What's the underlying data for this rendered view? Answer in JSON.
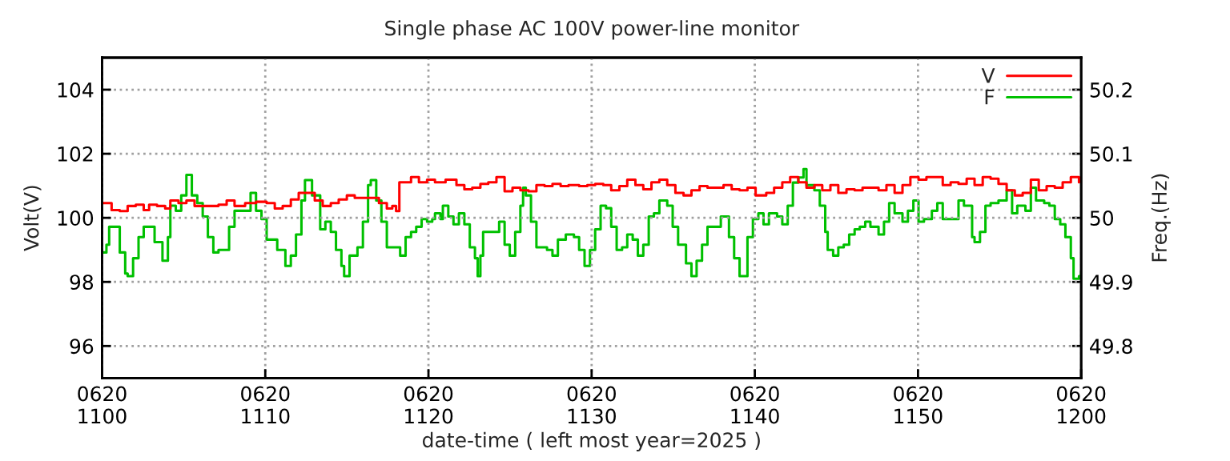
{
  "chart_data": {
    "type": "step",
    "title": "Single phase AC 100V power-line monitor",
    "xlabel": "date-time ( left most year=2025 )",
    "ylabel": "Volt(V)",
    "y2label": "Freq.(Hz)",
    "xlim": [
      "2025-06-20T11:00",
      "2025-06-20T12:00"
    ],
    "xticks": [
      {
        "value": "2025-06-20T11:00",
        "label": "0620\n1100"
      },
      {
        "value": "2025-06-20T11:10",
        "label": "0620\n1110"
      },
      {
        "value": "2025-06-20T11:20",
        "label": "0620\n1120"
      },
      {
        "value": "2025-06-20T11:30",
        "label": "0620\n1130"
      },
      {
        "value": "2025-06-20T11:40",
        "label": "0620\n1140"
      },
      {
        "value": "2025-06-20T11:50",
        "label": "0620\n1150"
      },
      {
        "value": "2025-06-20T12:00",
        "label": "0620\n1200"
      }
    ],
    "ylim": [
      95,
      105
    ],
    "yticks": [
      96,
      98,
      100,
      102,
      104
    ],
    "y2lim": [
      49.75,
      50.25
    ],
    "y2ticks": [
      49.8,
      49.9,
      50,
      50.1,
      50.2
    ],
    "grid": true,
    "legend": "top right",
    "series": [
      {
        "name": "V",
        "color": "#ff0000",
        "x": [
          "2025-06-20T11:00:00",
          "2025-06-20T11:00:16",
          "2025-06-20T11:00:35",
          "2025-06-20T11:01:05",
          "2025-06-20T11:01:34",
          "2025-06-20T11:02:04",
          "2025-06-20T11:02:33",
          "2025-06-20T11:02:53",
          "2025-06-20T11:03:22",
          "2025-06-20T11:03:52",
          "2025-06-20T11:04:11",
          "2025-06-20T11:04:41",
          "2025-06-20T11:05:10",
          "2025-06-20T11:05:40",
          "2025-06-20T11:06:10",
          "2025-06-20T11:06:39",
          "2025-06-20T11:07:08",
          "2025-06-20T11:07:38",
          "2025-06-20T11:08:07",
          "2025-06-20T11:08:46",
          "2025-06-20T11:09:26",
          "2025-06-20T11:10:05",
          "2025-06-20T11:10:35",
          "2025-06-20T11:11:04",
          "2025-06-20T11:11:34",
          "2025-06-20T11:12:03",
          "2025-06-20T11:12:32",
          "2025-06-20T11:13:02",
          "2025-06-20T11:13:31",
          "2025-06-20T11:14:01",
          "2025-06-20T11:14:30",
          "2025-06-20T11:15:00",
          "2025-06-20T11:15:29",
          "2025-06-20T11:15:59",
          "2025-06-20T11:16:28",
          "2025-06-20T11:16:58",
          "2025-06-20T11:17:27",
          "2025-06-20T11:17:47",
          "2025-06-20T11:18:01",
          "2025-06-20T11:18:13",
          "2025-06-20T11:18:36",
          "2025-06-20T11:18:56",
          "2025-06-20T11:19:25",
          "2025-06-20T11:19:55",
          "2025-06-20T11:20:24",
          "2025-06-20T11:21:03",
          "2025-06-20T11:21:43",
          "2025-06-20T11:22:12",
          "2025-06-20T11:22:41",
          "2025-06-20T11:23:11",
          "2025-06-20T11:23:40",
          "2025-06-20T11:24:10",
          "2025-06-20T11:24:40",
          "2025-06-20T11:25:09",
          "2025-06-20T11:25:38",
          "2025-06-20T11:26:08",
          "2025-06-20T11:26:37",
          "2025-06-20T11:27:07",
          "2025-06-20T11:27:36",
          "2025-06-20T11:28:06",
          "2025-06-20T11:28:35",
          "2025-06-20T11:29:14",
          "2025-06-20T11:29:44",
          "2025-06-20T11:30:13",
          "2025-06-20T11:30:43",
          "2025-06-20T11:31:12",
          "2025-06-20T11:31:42",
          "2025-06-20T11:32:11",
          "2025-06-20T11:32:41",
          "2025-06-20T11:33:10",
          "2025-06-20T11:33:40",
          "2025-06-20T11:34:09",
          "2025-06-20T11:34:38",
          "2025-06-20T11:35:08",
          "2025-06-20T11:35:38",
          "2025-06-20T11:36:07",
          "2025-06-20T11:36:37",
          "2025-06-20T11:37:06",
          "2025-06-20T11:37:35",
          "2025-06-20T11:38:05",
          "2025-06-20T11:38:35",
          "2025-06-20T11:39:04",
          "2025-06-20T11:39:33",
          "2025-06-20T11:40:03",
          "2025-06-20T11:40:42",
          "2025-06-20T11:41:11",
          "2025-06-20T11:41:41",
          "2025-06-20T11:42:10",
          "2025-06-20T11:42:40",
          "2025-06-20T11:43:10",
          "2025-06-20T11:43:39",
          "2025-06-20T11:44:08",
          "2025-06-20T11:44:38",
          "2025-06-20T11:45:07",
          "2025-06-20T11:45:37",
          "2025-06-20T11:46:07",
          "2025-06-20T11:46:36",
          "2025-06-20T11:47:05",
          "2025-06-20T11:47:35",
          "2025-06-20T11:48:04",
          "2025-06-20T11:48:34",
          "2025-06-20T11:49:03",
          "2025-06-20T11:49:32",
          "2025-06-20T11:50:02",
          "2025-06-20T11:50:31",
          "2025-06-20T11:51:01",
          "2025-06-20T11:51:31",
          "2025-06-20T11:52:00",
          "2025-06-20T11:52:29",
          "2025-06-20T11:52:59",
          "2025-06-20T11:53:28",
          "2025-06-20T11:53:58",
          "2025-06-20T11:54:27",
          "2025-06-20T11:54:56",
          "2025-06-20T11:55:26",
          "2025-06-20T11:55:56",
          "2025-06-20T11:56:25",
          "2025-06-20T11:56:55",
          "2025-06-20T11:57:24",
          "2025-06-20T11:57:53",
          "2025-06-20T11:58:23",
          "2025-06-20T11:58:52",
          "2025-06-20T11:59:22",
          "2025-06-20T11:59:52"
        ],
        "values": [
          100.46,
          100.46,
          100.24,
          100.21,
          100.37,
          100.41,
          100.24,
          100.41,
          100.37,
          100.29,
          100.54,
          100.46,
          100.54,
          100.37,
          100.37,
          100.37,
          100.41,
          100.54,
          100.37,
          100.46,
          100.5,
          100.46,
          100.29,
          100.37,
          100.57,
          100.78,
          100.78,
          100.54,
          100.37,
          100.46,
          100.57,
          100.7,
          100.62,
          100.62,
          100.62,
          100.46,
          100.29,
          100.37,
          100.21,
          101.11,
          101.11,
          101.27,
          101.11,
          101.19,
          101.11,
          101.19,
          101.02,
          100.89,
          100.94,
          101.06,
          101.11,
          101.27,
          100.83,
          100.94,
          100.86,
          100.83,
          101.02,
          100.99,
          101.06,
          100.99,
          101.02,
          100.99,
          101.02,
          101.06,
          101.02,
          100.86,
          100.99,
          101.19,
          101.02,
          100.89,
          101.11,
          101.19,
          101.02,
          100.78,
          100.7,
          100.86,
          100.99,
          100.94,
          100.94,
          101.02,
          100.89,
          100.86,
          100.94,
          100.7,
          100.78,
          100.94,
          101.11,
          101.27,
          101.11,
          100.94,
          101.02,
          100.86,
          101.02,
          100.78,
          100.89,
          100.86,
          100.94,
          100.94,
          100.86,
          101.02,
          100.78,
          101.02,
          101.27,
          101.19,
          101.27,
          101.27,
          101.02,
          101.11,
          101.06,
          101.22,
          101.02,
          101.27,
          101.22,
          101.06,
          100.86,
          100.7,
          100.78,
          101.19,
          100.86,
          100.99,
          100.94,
          101.11,
          101.27,
          101.11
        ]
      },
      {
        "name": "F",
        "color": "#00c000",
        "axis": "y2",
        "x": [
          "2025-06-20T11:00:00",
          "2025-06-20T11:00:16",
          "2025-06-20T11:00:26",
          "2025-06-20T11:00:45",
          "2025-06-20T11:01:05",
          "2025-06-20T11:01:25",
          "2025-06-20T11:01:34",
          "2025-06-20T11:01:54",
          "2025-06-20T11:02:14",
          "2025-06-20T11:02:33",
          "2025-06-20T11:02:53",
          "2025-06-20T11:03:13",
          "2025-06-20T11:03:42",
          "2025-06-20T11:04:02",
          "2025-06-20T11:04:11",
          "2025-06-20T11:04:31",
          "2025-06-20T11:04:51",
          "2025-06-20T11:05:10",
          "2025-06-20T11:05:30",
          "2025-06-20T11:05:50",
          "2025-06-20T11:06:10",
          "2025-06-20T11:06:29",
          "2025-06-20T11:06:49",
          "2025-06-20T11:07:08",
          "2025-06-20T11:07:28",
          "2025-06-20T11:07:47",
          "2025-06-20T11:08:07",
          "2025-06-20T11:08:37",
          "2025-06-20T11:09:06",
          "2025-06-20T11:09:26",
          "2025-06-20T11:09:46",
          "2025-06-20T11:10:05",
          "2025-06-20T11:10:25",
          "2025-06-20T11:10:44",
          "2025-06-20T11:11:14",
          "2025-06-20T11:11:34",
          "2025-06-20T11:11:53",
          "2025-06-20T11:12:13",
          "2025-06-20T11:12:26",
          "2025-06-20T11:12:52",
          "2025-06-20T11:13:22",
          "2025-06-20T11:13:41",
          "2025-06-20T11:14:01",
          "2025-06-20T11:14:20",
          "2025-06-20T11:14:40",
          "2025-06-20T11:14:50",
          "2025-06-20T11:15:10",
          "2025-06-20T11:15:39",
          "2025-06-20T11:15:59",
          "2025-06-20T11:16:18",
          "2025-06-20T11:16:28",
          "2025-06-20T11:16:48",
          "2025-06-20T11:17:07",
          "2025-06-20T11:17:27",
          "2025-06-20T11:17:56",
          "2025-06-20T11:18:16",
          "2025-06-20T11:18:36",
          "2025-06-20T11:18:56",
          "2025-06-20T11:19:15",
          "2025-06-20T11:19:35",
          "2025-06-20T11:19:55",
          "2025-06-20T11:20:14",
          "2025-06-20T11:20:24",
          "2025-06-20T11:20:44",
          "2025-06-20T11:20:53",
          "2025-06-20T11:21:13",
          "2025-06-20T11:21:32",
          "2025-06-20T11:21:52",
          "2025-06-20T11:22:12",
          "2025-06-20T11:22:32",
          "2025-06-20T11:22:51",
          "2025-06-20T11:23:01",
          "2025-06-20T11:23:11",
          "2025-06-20T11:23:21",
          "2025-06-20T11:24:00",
          "2025-06-20T11:24:20",
          "2025-06-20T11:24:40",
          "2025-06-20T11:24:59",
          "2025-06-20T11:25:19",
          "2025-06-20T11:25:38",
          "2025-06-20T11:25:48",
          "2025-06-20T11:25:58",
          "2025-06-20T11:26:17",
          "2025-06-20T11:26:37",
          "2025-06-20T11:27:16",
          "2025-06-20T11:27:36",
          "2025-06-20T11:27:56",
          "2025-06-20T11:28:25",
          "2025-06-20T11:28:55",
          "2025-06-20T11:29:14",
          "2025-06-20T11:29:34",
          "2025-06-20T11:29:54",
          "2025-06-20T11:30:13",
          "2025-06-20T11:30:33",
          "2025-06-20T11:30:53",
          "2025-06-20T11:31:12",
          "2025-06-20T11:31:32",
          "2025-06-20T11:31:52",
          "2025-06-20T11:32:11",
          "2025-06-20T11:32:31",
          "2025-06-20T11:32:50",
          "2025-06-20T11:33:10",
          "2025-06-20T11:33:30",
          "2025-06-20T11:33:49",
          "2025-06-20T11:34:09",
          "2025-06-20T11:34:38",
          "2025-06-20T11:34:58",
          "2025-06-20T11:35:18",
          "2025-06-20T11:35:47",
          "2025-06-20T11:36:07",
          "2025-06-20T11:36:26",
          "2025-06-20T11:36:46",
          "2025-06-20T11:37:06",
          "2025-06-20T11:37:35",
          "2025-06-20T11:37:55",
          "2025-06-20T11:38:25",
          "2025-06-20T11:38:44",
          "2025-06-20T11:39:04",
          "2025-06-20T11:39:14",
          "2025-06-20T11:39:33",
          "2025-06-20T11:39:53",
          "2025-06-20T11:40:13",
          "2025-06-20T11:40:32",
          "2025-06-20T11:40:52",
          "2025-06-20T11:41:22",
          "2025-06-20T11:41:41",
          "2025-06-20T11:42:01",
          "2025-06-20T11:42:20",
          "2025-06-20T11:42:40",
          "2025-06-20T11:42:59",
          "2025-06-20T11:43:10",
          "2025-06-20T11:43:39",
          "2025-06-20T11:43:59",
          "2025-06-20T11:44:19",
          "2025-06-20T11:44:28",
          "2025-06-20T11:44:48",
          "2025-06-20T11:45:07",
          "2025-06-20T11:45:27",
          "2025-06-20T11:45:47",
          "2025-06-20T11:46:07",
          "2025-06-20T11:46:26",
          "2025-06-20T11:46:46",
          "2025-06-20T11:47:05",
          "2025-06-20T11:47:35",
          "2025-06-20T11:47:55",
          "2025-06-20T11:48:14",
          "2025-06-20T11:48:34",
          "2025-06-20T11:49:03",
          "2025-06-20T11:49:23",
          "2025-06-20T11:49:43",
          "2025-06-20T11:50:02",
          "2025-06-20T11:50:22",
          "2025-06-20T11:50:51",
          "2025-06-20T11:51:11",
          "2025-06-20T11:51:31",
          "2025-06-20T11:52:00",
          "2025-06-20T11:52:29",
          "2025-06-20T11:52:49",
          "2025-06-20T11:53:19",
          "2025-06-20T11:53:28",
          "2025-06-20T11:53:48",
          "2025-06-20T11:54:08",
          "2025-06-20T11:54:27",
          "2025-06-20T11:54:56",
          "2025-06-20T11:55:26",
          "2025-06-20T11:55:46",
          "2025-06-20T11:56:05",
          "2025-06-20T11:56:35",
          "2025-06-20T11:56:55",
          "2025-06-20T11:57:14",
          "2025-06-20T11:57:44",
          "2025-06-20T11:58:03",
          "2025-06-20T11:58:23",
          "2025-06-20T11:58:43",
          "2025-06-20T11:59:02",
          "2025-06-20T11:59:22",
          "2025-06-20T11:59:32",
          "2025-06-20T11:59:52",
          "2025-06-20T12:00:00"
        ],
        "values": [
          49.946,
          49.958,
          49.986,
          49.986,
          49.946,
          49.913,
          49.909,
          49.937,
          49.97,
          49.986,
          49.986,
          49.962,
          49.933,
          49.97,
          50.019,
          50.011,
          50.035,
          50.067,
          50.035,
          50.023,
          50.002,
          49.97,
          49.946,
          49.95,
          49.95,
          49.986,
          50.011,
          50.011,
          50.039,
          50.011,
          49.998,
          49.966,
          49.966,
          49.95,
          49.925,
          49.941,
          49.974,
          50.027,
          50.059,
          50.035,
          49.982,
          49.994,
          49.978,
          49.95,
          49.925,
          49.909,
          49.941,
          49.954,
          49.994,
          50.051,
          50.059,
          50.027,
          49.994,
          49.954,
          49.954,
          49.941,
          49.97,
          49.978,
          49.986,
          49.998,
          49.994,
          49.998,
          50.007,
          49.998,
          50.019,
          50.002,
          49.99,
          50.007,
          49.99,
          49.954,
          49.937,
          49.909,
          49.941,
          49.978,
          49.978,
          49.994,
          49.958,
          49.941,
          49.978,
          50.019,
          50.047,
          50.035,
          49.994,
          49.954,
          49.95,
          49.941,
          49.966,
          49.974,
          49.97,
          49.95,
          49.925,
          49.95,
          49.982,
          50.019,
          50.015,
          49.986,
          49.95,
          49.954,
          49.974,
          49.966,
          49.941,
          49.958,
          50.002,
          50.007,
          50.027,
          50.019,
          49.986,
          49.958,
          49.929,
          49.909,
          49.933,
          49.958,
          49.986,
          49.986,
          50.002,
          49.97,
          49.937,
          49.909,
          49.909,
          49.97,
          49.998,
          50.007,
          49.99,
          50.007,
          50.002,
          49.99,
          50.019,
          50.055,
          50.063,
          50.076,
          50.051,
          50.043,
          50.019,
          49.978,
          49.95,
          49.941,
          49.954,
          49.958,
          49.974,
          49.982,
          49.986,
          49.994,
          49.986,
          49.974,
          49.994,
          50.023,
          50.007,
          49.994,
          50.011,
          50.027,
          49.994,
          49.998,
          50.011,
          50.023,
          49.998,
          49.998,
          50.027,
          50.019,
          49.97,
          49.962,
          49.978,
          50.019,
          50.023,
          50.027,
          50.043,
          50.007,
          50.019,
          50.011,
          50.047,
          50.027,
          50.023,
          50.019,
          49.998,
          49.99,
          49.97,
          49.937,
          49.905,
          49.909,
          49.917
        ]
      }
    ]
  }
}
